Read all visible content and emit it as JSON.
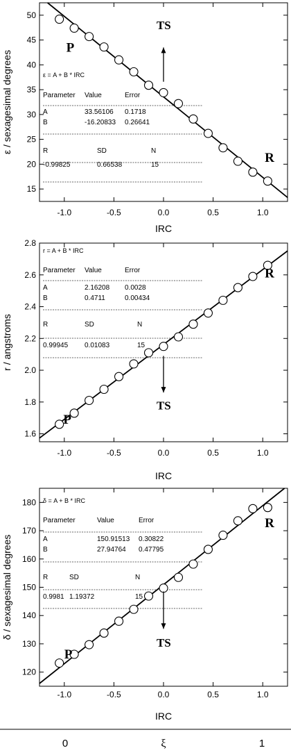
{
  "chart_data": [
    {
      "type": "scatter",
      "xlabel": "IRC",
      "ylabel": "ε / sexagesimal degrees",
      "xlim": [
        -1.25,
        1.25
      ],
      "ylim": [
        12.5,
        52.5
      ],
      "xticks": [
        "-1.0",
        "-0.5",
        "0.0",
        "0.5",
        "1.0"
      ],
      "yticks": [
        "15",
        "20",
        "25",
        "30",
        "35",
        "40",
        "45",
        "50"
      ],
      "ytick_values": [
        15,
        20,
        25,
        30,
        35,
        40,
        45,
        50
      ],
      "fit": {
        "intercept": 33.56106,
        "slope": -16.20833
      },
      "x": [
        -1.05,
        -0.9,
        -0.75,
        -0.6,
        -0.45,
        -0.3,
        -0.15,
        0.0,
        0.15,
        0.3,
        0.45,
        0.6,
        0.75,
        0.9,
        1.05
      ],
      "y": [
        49.2,
        47.4,
        45.7,
        43.6,
        41.0,
        38.6,
        35.9,
        34.4,
        32.2,
        29.1,
        26.2,
        23.3,
        20.6,
        18.4,
        16.6
      ],
      "labels": {
        "start": "P",
        "end": "R",
        "ts": "TS"
      },
      "arrow": {
        "x": 0.0,
        "from": 36.6,
        "to": 43.5,
        "label_y": 48.0
      },
      "stats": {
        "equation": "ε = A + B * IRC",
        "headers": [
          "Parameter",
          "Value",
          "Error"
        ],
        "rows": [
          [
            "A",
            "33.56106",
            "0.1718"
          ],
          [
            "B",
            "-16.20833",
            "0.26641"
          ]
        ],
        "headers2": [
          "R",
          "SD",
          "N"
        ],
        "row2": [
          "-0.99825",
          "0.66538",
          "15"
        ]
      }
    },
    {
      "type": "scatter",
      "xlabel": "IRC",
      "ylabel": "r / angstroms",
      "xlim": [
        -1.25,
        1.25
      ],
      "ylim": [
        1.55,
        2.8
      ],
      "xticks": [
        "-1.0",
        "-0.5",
        "0.0",
        "0.5",
        "1.0"
      ],
      "yticks": [
        "1.6",
        "1.8",
        "2.0",
        "2.2",
        "2.4",
        "2.6",
        "2.8"
      ],
      "ytick_values": [
        1.6,
        1.8,
        2.0,
        2.2,
        2.4,
        2.6,
        2.8
      ],
      "fit": {
        "intercept": 2.16208,
        "slope": 0.4711
      },
      "x": [
        -1.05,
        -0.9,
        -0.75,
        -0.6,
        -0.45,
        -0.3,
        -0.15,
        0.0,
        0.15,
        0.3,
        0.45,
        0.6,
        0.75,
        0.9,
        1.05
      ],
      "y": [
        1.66,
        1.73,
        1.81,
        1.88,
        1.96,
        2.04,
        2.11,
        2.15,
        2.21,
        2.29,
        2.36,
        2.44,
        2.52,
        2.59,
        2.66
      ],
      "labels": {
        "start": "P",
        "end": "R",
        "ts": "TS"
      },
      "arrow": {
        "x": 0.0,
        "from": 2.09,
        "to": 1.86,
        "label_y": 1.78
      },
      "stats": {
        "equation": "r = A + B * IRC",
        "headers": [
          "Parameter",
          "Value",
          "Error"
        ],
        "rows": [
          [
            "A",
            "2.16208",
            "0.0028"
          ],
          [
            "B",
            "0.4711",
            "0.00434"
          ]
        ],
        "headers2": [
          "R",
          "SD",
          "N"
        ],
        "row2": [
          "0.99945",
          "0.01083",
          "15"
        ]
      }
    },
    {
      "type": "scatter",
      "xlabel": "IRC",
      "ylabel": "δ / sexagesimal degrees",
      "xlim": [
        -1.25,
        1.25
      ],
      "ylim": [
        115,
        185
      ],
      "xticks": [
        "-1.0",
        "-0.5",
        "0.0",
        "0.5",
        "1.0"
      ],
      "yticks": [
        "120",
        "130",
        "140",
        "150",
        "160",
        "170",
        "180"
      ],
      "ytick_values": [
        120,
        130,
        140,
        150,
        160,
        170,
        180
      ],
      "fit": {
        "intercept": 150.91513,
        "slope": 27.94764
      },
      "x": [
        -1.05,
        -0.9,
        -0.75,
        -0.6,
        -0.45,
        -0.3,
        -0.15,
        0.0,
        0.15,
        0.3,
        0.45,
        0.6,
        0.75,
        0.9,
        1.05
      ],
      "y": [
        123.2,
        126.3,
        129.7,
        133.8,
        138.0,
        142.2,
        146.9,
        149.7,
        153.5,
        158.2,
        163.4,
        168.4,
        173.5,
        177.8,
        178.2
      ],
      "labels": {
        "start": "P",
        "end": "R",
        "ts": "TS"
      },
      "arrow": {
        "x": 0.0,
        "from": 148.5,
        "to": 135.3,
        "label_y": 130.5
      },
      "stats": {
        "equation": "δ = A + B * IRC",
        "headers": [
          "Parameter",
          "Value",
          "Error"
        ],
        "rows": [
          [
            "A",
            "150.91513",
            "0.30822"
          ],
          [
            "B",
            "27.94764",
            "0.47795"
          ]
        ],
        "headers2": [
          "R",
          "SD",
          "N"
        ],
        "row2": [
          "0.9981",
          "1.19372",
          "15"
        ]
      }
    }
  ],
  "xi_axis": {
    "left": "0",
    "center": "ξ",
    "right": "1"
  },
  "colors": {
    "ink": "#000000",
    "dash": "#333333",
    "marker_fill": "#ffffff"
  }
}
